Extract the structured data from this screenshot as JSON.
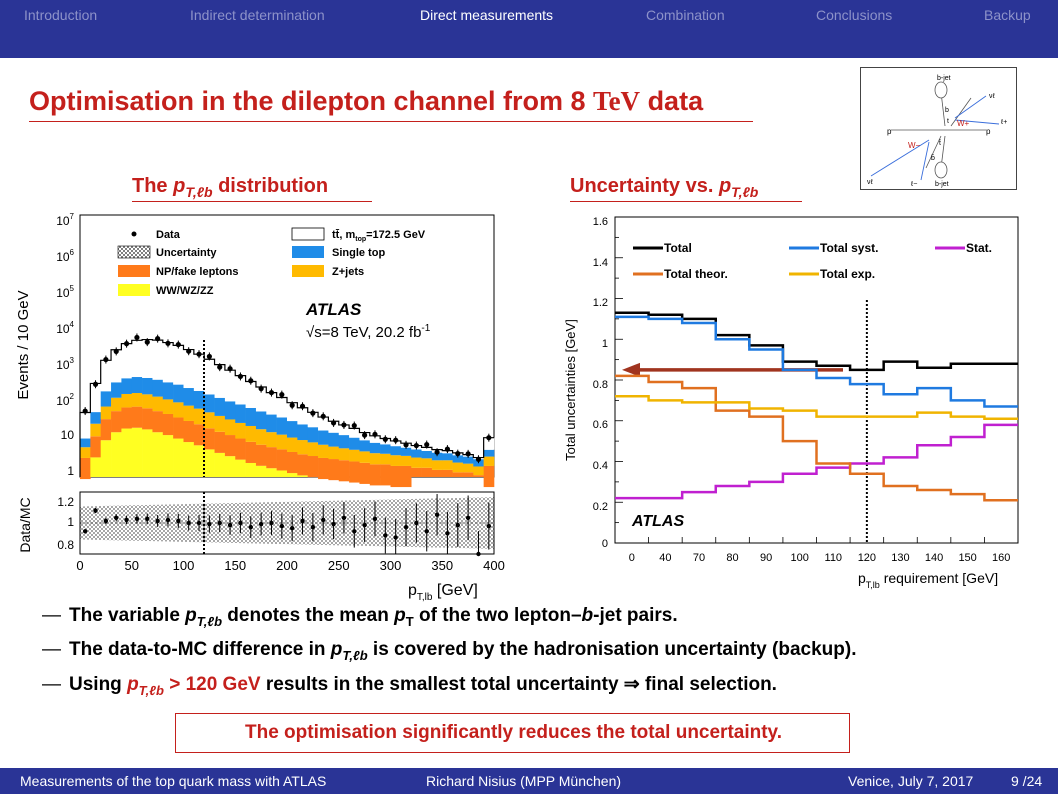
{
  "nav": {
    "items": [
      "Introduction",
      "Indirect determination",
      "Direct measurements",
      "Combination",
      "Conclusions",
      "Backup"
    ],
    "active": "Direct measurements"
  },
  "title": {
    "text": "Optimisation in the dilepton channel from 8 ",
    "unit": "TeV",
    "suffix": " data"
  },
  "diagram": {
    "labels": {
      "bjet_top": "b-jet",
      "bjet_bottom": "b-jet",
      "p_left": "p",
      "p_right": "p",
      "wplus": "W+",
      "wminus": "W−",
      "t": "t",
      "tbar": "t̄",
      "b": "b",
      "bbar": "b̄",
      "nu_top": "νℓ",
      "nu_bottom": "νℓ",
      "lplus": "ℓ+",
      "lminus": "ℓ−"
    }
  },
  "left_plot": {
    "heading_prefix": "The ",
    "heading_math": "p",
    "heading_sub": "T,ℓb",
    "heading_suffix": " distribution",
    "ylabel": "Events / 10 GeV",
    "ratio_ylabel": "Data/MC",
    "xlabel": "p",
    "xlabel_sub": "T,lb",
    "xlabel_unit": " [GeV]",
    "atlas": "ATLAS",
    "energy": "√s=8 TeV, 20.2 fb",
    "energy_sup": "-1",
    "legend": [
      "Data",
      "Uncertainty",
      "NP/fake leptons",
      "WW/WZ/ZZ",
      "tt̄, m",
      "Single top",
      "Z+jets"
    ],
    "legend_ttbar_sub": "top",
    "legend_ttbar_val": "=172.5 GeV",
    "yticks": [
      "10",
      "10",
      "10",
      "10",
      "10",
      "10",
      "10",
      "1"
    ],
    "yticks_exp": [
      "7",
      "6",
      "5",
      "4",
      "3",
      "2",
      "",
      ""
    ],
    "ratio_yticks": [
      "1.2",
      "1",
      "0.8"
    ],
    "xticks": [
      "0",
      "50",
      "100",
      "150",
      "200",
      "250",
      "300",
      "350",
      "400"
    ]
  },
  "right_plot": {
    "heading_prefix": "Uncertainty vs. ",
    "heading_math": "p",
    "heading_sub": "T,ℓb",
    "ylabel": "Total uncertainties [GeV]",
    "xlabel": "p",
    "xlabel_sub": "T,lb",
    "xlabel_unit": " requirement [GeV]",
    "atlas": "ATLAS",
    "legend": [
      "Total",
      "Total syst.",
      "Stat.",
      "Total theor.",
      "Total exp."
    ],
    "yticks": [
      "1.6",
      "1.4",
      "1.2",
      "1",
      "0.8",
      "0.6",
      "0.4",
      "0.2",
      "0"
    ],
    "xticks": [
      "0",
      "40",
      "70",
      "80",
      "90",
      "100",
      "110",
      "120",
      "130",
      "140",
      "150",
      "160"
    ]
  },
  "chart_data": {
    "type": "line",
    "x": [
      "0",
      "40",
      "70",
      "80",
      "90",
      "100",
      "110",
      "120",
      "130",
      "140",
      "150",
      "160"
    ],
    "xlabel": "pT,lb requirement [GeV]",
    "ylabel": "Total uncertainties [GeV]",
    "ylim": [
      0,
      1.6
    ],
    "grid": false,
    "legend_position": "top",
    "series": [
      {
        "name": "Total",
        "color": "#000000",
        "values": [
          1.13,
          1.12,
          1.1,
          1.02,
          0.97,
          0.89,
          0.87,
          0.85,
          0.89,
          0.86,
          0.88,
          0.88
        ]
      },
      {
        "name": "Total syst.",
        "color": "#1f7ae0",
        "values": [
          1.11,
          1.1,
          1.08,
          1.0,
          0.95,
          0.85,
          0.81,
          0.78,
          0.73,
          0.76,
          0.7,
          0.67
        ]
      },
      {
        "name": "Stat.",
        "color": "#c020d0",
        "values": [
          0.22,
          0.22,
          0.25,
          0.28,
          0.3,
          0.34,
          0.37,
          0.39,
          0.42,
          0.48,
          0.52,
          0.58
        ]
      },
      {
        "name": "Total theor.",
        "color": "#e07020",
        "values": [
          0.82,
          0.79,
          0.76,
          0.65,
          0.62,
          0.5,
          0.39,
          0.34,
          0.28,
          0.26,
          0.24,
          0.21
        ]
      },
      {
        "name": "Total exp.",
        "color": "#f0b400",
        "values": [
          0.72,
          0.7,
          0.69,
          0.69,
          0.66,
          0.65,
          0.62,
          0.62,
          0.62,
          0.64,
          0.62,
          0.61
        ]
      }
    ],
    "annotations": [
      {
        "type": "dotted-line",
        "x": "120"
      },
      {
        "type": "arrow",
        "y": 0.85
      },
      {
        "type": "text",
        "text": "ATLAS"
      }
    ]
  },
  "bullets": {
    "b1_a": "The variable ",
    "b1_m": "p",
    "b1_s": "T,ℓb",
    "b1_b": " denotes the mean ",
    "b1_m2": "p",
    "b1_s2": "T",
    "b1_c": " of the two lepton–",
    "b1_m3": "b",
    "b1_d": "-jet pairs.",
    "b2_a": "The data-to-MC difference in ",
    "b2_m": "p",
    "b2_s": "T,ℓb",
    "b2_b": " is covered by the hadronisation uncertainty (backup).",
    "b3_a": "Using ",
    "b3_m": "p",
    "b3_s": "T,ℓb",
    "b3_gt": " > 120 GeV",
    "b3_b": " results in the smallest total uncertainty ⇒ final selection.",
    "dash": "—"
  },
  "summary": "The optimisation significantly reduces the total uncertainty.",
  "footer": {
    "title": "Measurements of the top quark mass with ATLAS",
    "author": "Richard Nisius  (MPP München)",
    "venue": "Venice, July 7, 2017",
    "page": "9 /24"
  }
}
